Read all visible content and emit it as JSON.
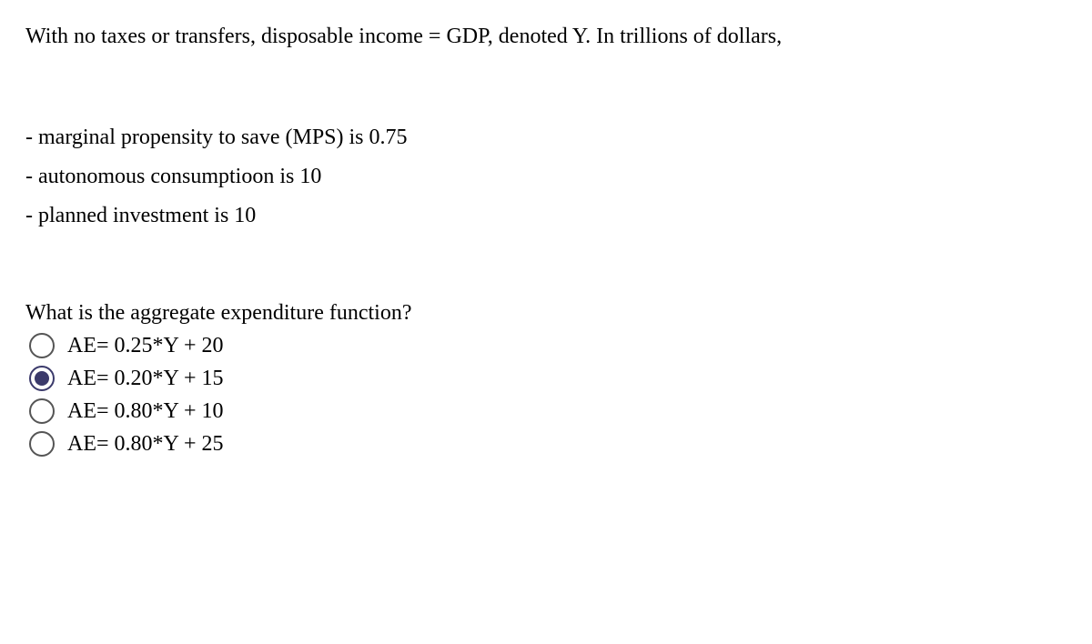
{
  "intro": "With no taxes or transfers, disposable income = GDP, denoted Y. In trillions of dollars,",
  "bullets": [
    "- marginal propensity to save (MPS) is 0.75",
    "- autonomous consumptioon is 10",
    "- planned investment is 10"
  ],
  "question": "What is the aggregate expenditure function?",
  "options": [
    {
      "label": "AE= 0.25*Y + 20",
      "selected": false
    },
    {
      "label": "AE= 0.20*Y + 15",
      "selected": true
    },
    {
      "label": "AE= 0.80*Y + 10",
      "selected": false
    },
    {
      "label": "AE= 0.80*Y + 25",
      "selected": false
    }
  ],
  "colors": {
    "background": "#ffffff",
    "text": "#000000",
    "radio_border": "#555555",
    "radio_selected": "#3b3a6b"
  },
  "typography": {
    "font_family": "Georgia, Times New Roman, serif",
    "font_size": 24
  }
}
